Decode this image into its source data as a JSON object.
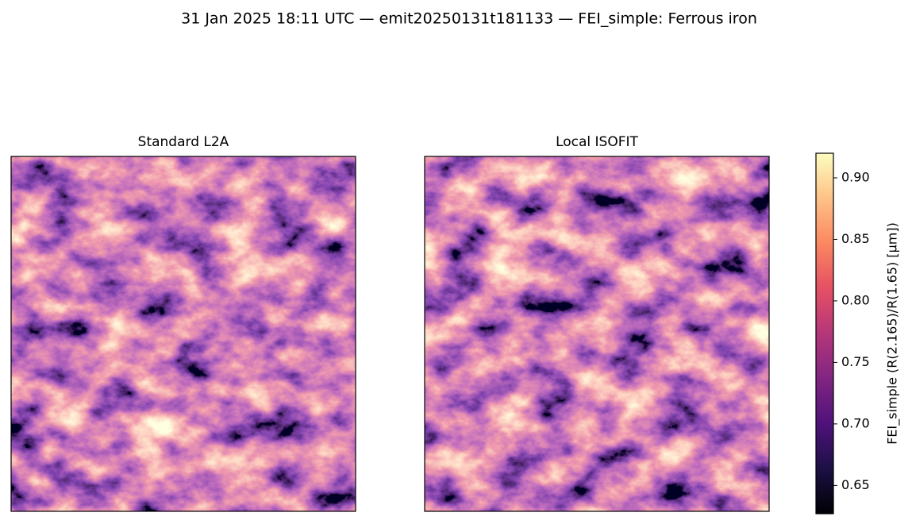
{
  "chart_data": {
    "type": "image",
    "title": "31 Jan 2025 18:11 UTC — emit20250131t181133 — FEI_simple: Ferrous iron",
    "panels": [
      {
        "title": "Standard L2A"
      },
      {
        "title": "Local ISOFIT"
      }
    ],
    "colorbar": {
      "label": "FEI_simple  (R(2.165)/R(1.65)  [µm])",
      "colormap": "magma",
      "lim": [
        0.627,
        0.92
      ],
      "ticks": [
        0.65,
        {
          "value": 0.7,
          "label": "0.70"
        },
        0.75,
        {
          "value": 0.8,
          "label": "0.80"
        },
        0.85,
        {
          "value": 0.9,
          "label": "0.90"
        }
      ]
    }
  }
}
